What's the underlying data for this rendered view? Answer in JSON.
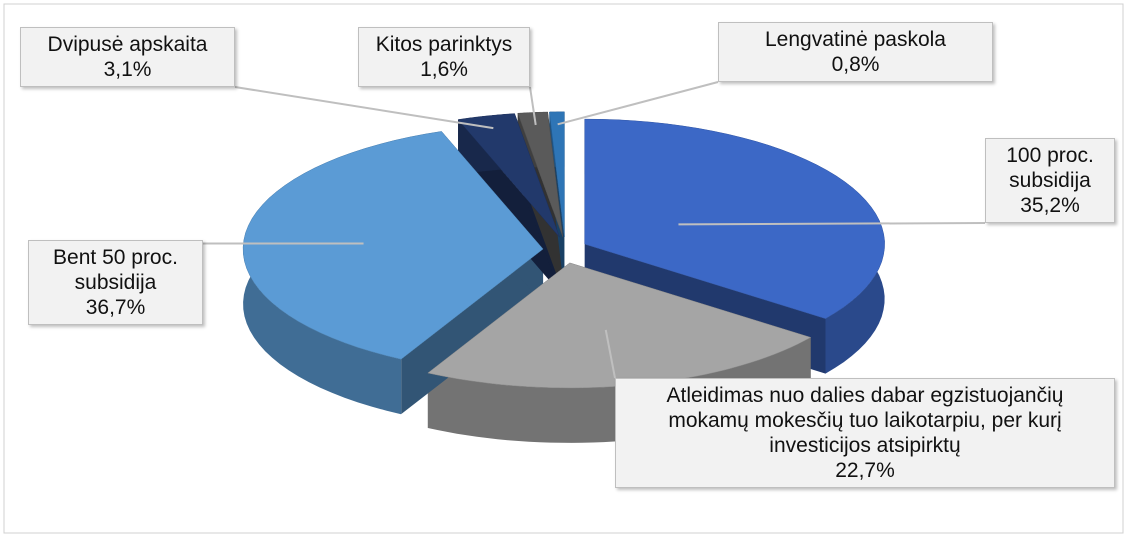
{
  "chart_data": {
    "type": "pie3d",
    "categories": [
      "100 proc. subsidija",
      "Atleidimas nuo dalies dabar egzistuojančių mokamų mokesčių tuo laikotarpiu, per kurį investicijos atsipirktų",
      "Bent 50 proc. subsidija",
      "Dvipusė apskaita",
      "Kitos parinktys",
      "Lengvatinė paskola"
    ],
    "values": [
      35.2,
      22.7,
      36.7,
      3.1,
      1.6,
      0.8
    ],
    "value_labels": [
      "35,2%",
      "22,7%",
      "36,7%",
      "3,1%",
      "1,6%",
      "0,8%"
    ],
    "colors": [
      "#3c68c6",
      "#a5a5a5",
      "#5b9bd5",
      "#22396b",
      "#5a5a5a",
      "#2e75b6"
    ]
  }
}
